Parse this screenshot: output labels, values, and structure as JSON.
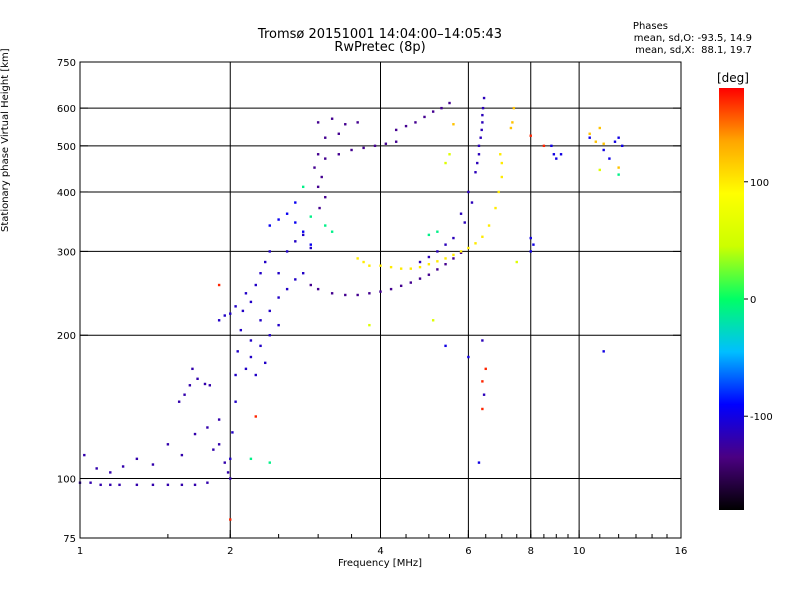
{
  "header": {
    "title": "Tromsø 20151001 14:04:00–14:05:43",
    "subtitle": "RwPretec (8p)",
    "phases_label": "Phases",
    "stat_o": "mean, sd,O: -93.5, 14.9",
    "stat_x": "mean, sd,X:  88.1, 19.7"
  },
  "colorbar": {
    "unit": "[deg]",
    "range": [
      -180,
      180
    ],
    "ticks": [
      {
        "value": 100,
        "label": "100"
      },
      {
        "value": 0,
        "label": "0"
      },
      {
        "value": -100,
        "label": "-100"
      }
    ],
    "colors": [
      "#000000",
      "#4b0082",
      "#0000ff",
      "#00bfff",
      "#00ff66",
      "#ccff00",
      "#ffff00",
      "#ffa500",
      "#ff0000"
    ]
  },
  "chart_data": {
    "type": "scatter",
    "xlabel": "Frequency [MHz]",
    "ylabel": "Stationary phase Virtual Height [km]",
    "x_scale": "log",
    "y_scale": "log",
    "xlim": [
      1,
      16
    ],
    "ylim": [
      75,
      750
    ],
    "grid": true,
    "x_ticks": [
      {
        "value": 1,
        "label": "1"
      },
      {
        "value": 2,
        "label": "2"
      },
      {
        "value": 4,
        "label": "4"
      },
      {
        "value": 6,
        "label": "6"
      },
      {
        "value": 8,
        "label": "8"
      },
      {
        "value": 10,
        "label": "10"
      },
      {
        "value": 16,
        "label": "16"
      }
    ],
    "y_ticks": [
      {
        "value": 75,
        "label": "75"
      },
      {
        "value": 100,
        "label": "100"
      },
      {
        "value": 200,
        "label": "200"
      },
      {
        "value": 300,
        "label": "300"
      },
      {
        "value": 400,
        "label": "400"
      },
      {
        "value": 500,
        "label": "500"
      },
      {
        "value": 600,
        "label": "600"
      },
      {
        "value": 750,
        "label": "750"
      }
    ],
    "x_grid": [
      2,
      4,
      6,
      8,
      10
    ],
    "y_grid": [
      100,
      200,
      300,
      400,
      500,
      600
    ],
    "series": [
      {
        "phase": -120,
        "points": [
          [
            1.0,
            98
          ],
          [
            1.05,
            98
          ],
          [
            1.1,
            97
          ],
          [
            1.15,
            97
          ],
          [
            1.2,
            97
          ],
          [
            1.3,
            97
          ],
          [
            1.4,
            97
          ],
          [
            1.5,
            97
          ],
          [
            1.6,
            97
          ],
          [
            1.7,
            97
          ],
          [
            1.8,
            98
          ],
          [
            1.02,
            112
          ],
          [
            1.08,
            105
          ],
          [
            1.15,
            103
          ],
          [
            1.22,
            106
          ],
          [
            1.3,
            110
          ],
          [
            1.4,
            107
          ],
          [
            1.5,
            118
          ],
          [
            1.6,
            112
          ],
          [
            1.7,
            124
          ],
          [
            1.8,
            128
          ],
          [
            1.9,
            133
          ],
          [
            1.68,
            170
          ],
          [
            1.72,
            162
          ],
          [
            1.78,
            158
          ],
          [
            1.82,
            157
          ],
          [
            1.58,
            145
          ],
          [
            1.62,
            150
          ],
          [
            1.66,
            157
          ],
          [
            1.85,
            115
          ],
          [
            1.9,
            118
          ],
          [
            1.95,
            108
          ],
          [
            1.98,
            103
          ],
          [
            2.0,
            100
          ]
        ]
      },
      {
        "phase": -110,
        "points": [
          [
            2.0,
            110
          ],
          [
            2.02,
            125
          ],
          [
            2.05,
            145
          ],
          [
            2.05,
            165
          ],
          [
            2.07,
            185
          ],
          [
            2.1,
            205
          ],
          [
            2.12,
            225
          ],
          [
            2.15,
            245
          ],
          [
            2.2,
            235
          ],
          [
            2.25,
            255
          ],
          [
            2.3,
            270
          ],
          [
            2.35,
            285
          ],
          [
            2.4,
            300
          ],
          [
            2.5,
            270
          ],
          [
            2.6,
            300
          ],
          [
            2.7,
            315
          ],
          [
            2.8,
            325
          ],
          [
            2.9,
            305
          ],
          [
            2.2,
            195
          ],
          [
            2.3,
            215
          ],
          [
            2.4,
            225
          ],
          [
            2.5,
            240
          ],
          [
            2.6,
            250
          ],
          [
            2.7,
            262
          ],
          [
            2.8,
            270
          ],
          [
            2.15,
            170
          ],
          [
            2.2,
            180
          ],
          [
            2.25,
            165
          ],
          [
            2.3,
            190
          ],
          [
            2.35,
            175
          ],
          [
            2.4,
            200
          ],
          [
            2.5,
            210
          ],
          [
            1.9,
            215
          ],
          [
            1.95,
            220
          ],
          [
            2.0,
            222
          ],
          [
            2.05,
            230
          ]
        ]
      },
      {
        "phase": -95,
        "points": [
          [
            2.4,
            340
          ],
          [
            2.5,
            350
          ],
          [
            2.6,
            360
          ],
          [
            2.7,
            345
          ],
          [
            2.8,
            330
          ],
          [
            2.9,
            310
          ],
          [
            2.7,
            380
          ]
        ]
      },
      {
        "phase": -130,
        "points": [
          [
            2.9,
            255
          ],
          [
            3.0,
            250
          ],
          [
            3.2,
            245
          ],
          [
            3.4,
            243
          ],
          [
            3.6,
            243
          ],
          [
            3.8,
            245
          ],
          [
            4.0,
            247
          ],
          [
            4.2,
            250
          ],
          [
            4.4,
            254
          ],
          [
            4.6,
            258
          ],
          [
            4.8,
            263
          ],
          [
            5.0,
            268
          ],
          [
            5.2,
            275
          ],
          [
            5.4,
            282
          ],
          [
            5.6,
            290
          ],
          [
            5.8,
            298
          ],
          [
            3.1,
            470
          ],
          [
            3.3,
            480
          ],
          [
            3.5,
            490
          ],
          [
            3.7,
            495
          ],
          [
            3.9,
            500
          ],
          [
            4.1,
            505
          ],
          [
            4.3,
            510
          ],
          [
            3.0,
            560
          ],
          [
            3.2,
            570
          ],
          [
            3.4,
            555
          ],
          [
            3.6,
            560
          ],
          [
            3.1,
            520
          ],
          [
            3.3,
            530
          ],
          [
            4.3,
            540
          ],
          [
            4.5,
            550
          ],
          [
            4.7,
            560
          ],
          [
            4.9,
            575
          ],
          [
            5.1,
            590
          ],
          [
            5.3,
            600
          ],
          [
            5.5,
            615
          ],
          [
            3.0,
            410
          ],
          [
            3.05,
            430
          ],
          [
            3.1,
            390
          ],
          [
            3.02,
            370
          ],
          [
            2.95,
            450
          ],
          [
            3.0,
            480
          ]
        ]
      },
      {
        "phase": -115,
        "points": [
          [
            5.6,
            320
          ],
          [
            5.8,
            360
          ],
          [
            6.0,
            400
          ],
          [
            6.2,
            440
          ],
          [
            6.3,
            480
          ],
          [
            6.35,
            520
          ],
          [
            6.4,
            560
          ],
          [
            6.42,
            600
          ],
          [
            6.45,
            630
          ],
          [
            5.9,
            345
          ],
          [
            6.1,
            380
          ],
          [
            6.25,
            460
          ],
          [
            6.3,
            500
          ],
          [
            6.38,
            540
          ],
          [
            6.4,
            580
          ],
          [
            5.4,
            310
          ],
          [
            5.2,
            300
          ],
          [
            5.0,
            292
          ],
          [
            4.8,
            285
          ],
          [
            6.4,
            195
          ],
          [
            6.45,
            150
          ]
        ]
      },
      {
        "phase": 100,
        "points": [
          [
            4.0,
            280
          ],
          [
            4.2,
            278
          ],
          [
            4.4,
            276
          ],
          [
            4.6,
            276
          ],
          [
            4.8,
            278
          ],
          [
            5.0,
            282
          ],
          [
            5.2,
            286
          ],
          [
            5.4,
            290
          ],
          [
            5.6,
            295
          ],
          [
            5.8,
            300
          ],
          [
            6.0,
            305
          ],
          [
            6.2,
            312
          ],
          [
            6.4,
            322
          ],
          [
            6.6,
            340
          ],
          [
            6.8,
            370
          ],
          [
            6.9,
            400
          ],
          [
            7.0,
            430
          ],
          [
            7.0,
            460
          ],
          [
            6.95,
            480
          ],
          [
            3.6,
            290
          ],
          [
            3.7,
            285
          ],
          [
            3.8,
            280
          ]
        ]
      },
      {
        "phase": -10,
        "points": [
          [
            2.9,
            355
          ],
          [
            3.1,
            340
          ],
          [
            3.2,
            330
          ],
          [
            2.8,
            410
          ],
          [
            2.2,
            110
          ],
          [
            2.4,
            108
          ],
          [
            5.0,
            325
          ],
          [
            5.2,
            330
          ],
          [
            12.0,
            435
          ]
        ]
      },
      {
        "phase": 120,
        "points": [
          [
            7.3,
            545
          ],
          [
            7.35,
            560
          ],
          [
            10.5,
            530
          ],
          [
            10.8,
            510
          ],
          [
            11.0,
            545
          ],
          [
            11.2,
            505
          ],
          [
            12.0,
            450
          ],
          [
            5.6,
            555
          ],
          [
            7.4,
            600
          ]
        ]
      },
      {
        "phase": -100,
        "points": [
          [
            8.0,
            320
          ],
          [
            8.1,
            310
          ],
          [
            8.0,
            300
          ],
          [
            8.8,
            500
          ],
          [
            8.9,
            480
          ],
          [
            9.0,
            470
          ],
          [
            9.2,
            480
          ],
          [
            10.5,
            520
          ],
          [
            11.2,
            490
          ],
          [
            11.5,
            470
          ],
          [
            12.0,
            520
          ],
          [
            11.8,
            510
          ],
          [
            6.3,
            108
          ],
          [
            6.0,
            180
          ],
          [
            5.4,
            190
          ],
          [
            11.2,
            185
          ],
          [
            12.2,
            500
          ]
        ]
      },
      {
        "phase": 170,
        "points": [
          [
            2.25,
            135
          ],
          [
            2.0,
            82
          ],
          [
            6.4,
            160
          ],
          [
            6.5,
            170
          ],
          [
            6.4,
            140
          ],
          [
            8.0,
            525
          ],
          [
            8.5,
            500
          ],
          [
            1.9,
            255
          ]
        ]
      },
      {
        "phase": 60,
        "points": [
          [
            5.4,
            460
          ],
          [
            5.5,
            480
          ],
          [
            5.1,
            215
          ],
          [
            3.8,
            210
          ],
          [
            7.5,
            285
          ],
          [
            11.0,
            445
          ]
        ]
      }
    ]
  }
}
